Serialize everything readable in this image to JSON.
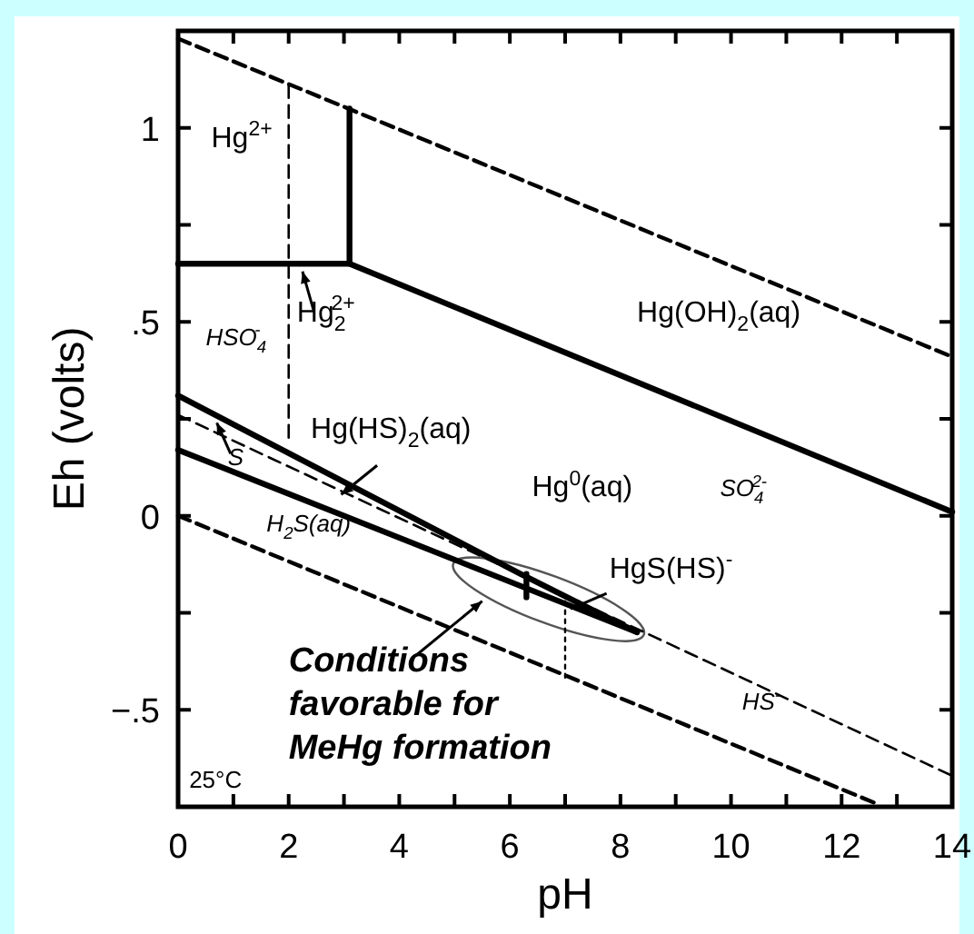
{
  "chart_data": {
    "type": "line",
    "xlabel": "pH",
    "ylabel": "Eh (volts)",
    "xlim": [
      0,
      14
    ],
    "ylim": [
      -0.75,
      1.25
    ],
    "xticks": [
      0,
      {
        "value": 1,
        "label": null
      },
      2,
      {
        "value": 3,
        "label": null
      },
      4,
      {
        "value": 5,
        "label": null
      },
      6,
      {
        "value": 7,
        "label": null
      },
      8,
      {
        "value": 9,
        "label": null
      },
      10,
      {
        "value": 11,
        "label": null
      },
      12,
      {
        "value": 13,
        "label": null
      },
      14
    ],
    "yticks": [
      {
        "value": -0.5,
        "label": "−.5"
      },
      {
        "value": -0.25,
        "label": null
      },
      0,
      {
        "value": 0.25,
        "label": null
      },
      {
        "value": 0.5,
        "label": ".5"
      },
      {
        "value": 0.75,
        "label": null
      },
      1
    ],
    "grid": false,
    "marker": "none",
    "series": [
      {
        "color": "#000000",
        "line_style": "dashed",
        "x": [
          0,
          14
        ],
        "values": [
          1.23,
          0.41
        ]
      },
      {
        "color": "#000000",
        "line_style": "dashed",
        "x": [
          0,
          12.6
        ],
        "values": [
          0,
          -0.74
        ]
      },
      {
        "color": "#000000",
        "line_style": "solid",
        "x": [
          0,
          3.1,
          3.1
        ],
        "values": [
          0.65,
          0.65,
          1.05
        ]
      },
      {
        "color": "#000000",
        "line_style": "solid",
        "x": [
          3.1,
          14
        ],
        "values": [
          0.65,
          0.01
        ]
      },
      {
        "color": "#000000",
        "line_style": "dashed",
        "x": [
          2,
          2
        ],
        "values": [
          1.11,
          0.2
        ]
      },
      {
        "color": "#000000",
        "line_style": "solid",
        "x": [
          0,
          6.2,
          8.3
        ],
        "values": [
          0.31,
          -0.15,
          -0.3
        ]
      },
      {
        "color": "#000000",
        "line_style": "solid",
        "x": [
          0,
          8.3
        ],
        "values": [
          0.17,
          -0.3
        ]
      },
      {
        "color": "#000000",
        "line_style": "solid",
        "x": [
          6.3,
          6.3
        ],
        "values": [
          -0.15,
          -0.21
        ]
      },
      {
        "color": "#000000",
        "line_style": "dashed",
        "x": [
          0,
          14
        ],
        "values": [
          0.26,
          -0.67
        ]
      },
      {
        "color": "#000000",
        "line_style": "dotted",
        "x": [
          7,
          7
        ],
        "values": [
          -0.22,
          -0.42
        ]
      }
    ],
    "annotations": [
      "Hg$^{2+}$",
      "Hg$_{2}$$^{2+}$",
      "HSO$_{4}$$^{-}$",
      "Hg(OH)$_{2}$(aq)",
      "Hg(HS)$_{2}$(aq)",
      "S",
      "Hg$^{0}$(aq)",
      "SO$_{4}$$^{2-}$",
      "H$_{2}$S(aq)",
      "HgS(HS)$^{-}$",
      "HS$^{-}$",
      "Conditions favorable for MeHg formation",
      "25°C"
    ]
  }
}
